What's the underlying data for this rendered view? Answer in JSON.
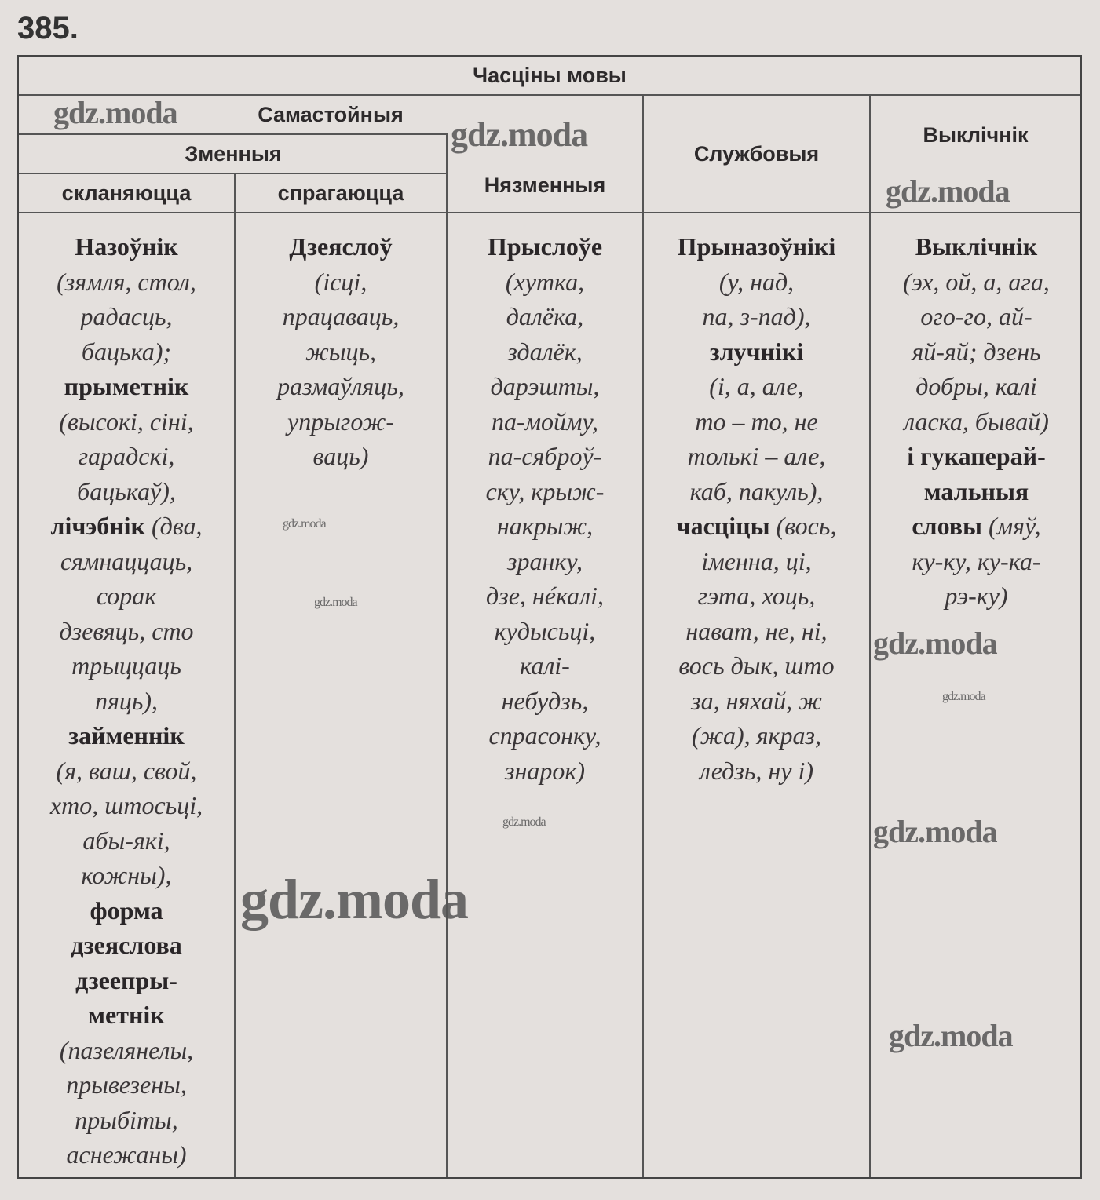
{
  "exercise_number": "385.",
  "table": {
    "title": "Часціны мовы",
    "headers": {
      "independent": "Самастойныя",
      "changeable": "Зменныя",
      "declinable": "скланяюцца",
      "conjugable": "спрагаюцца",
      "unchangeable": "Нязменныя",
      "auxiliary": "Службовыя",
      "interjection": "Выклічнік"
    },
    "columns": [
      [
        [
          [
            "Назоўнік",
            "b"
          ]
        ],
        [
          [
            "(зямля, стол,",
            "i"
          ]
        ],
        [
          [
            "радасць,",
            "i"
          ]
        ],
        [
          [
            "бацька);",
            "i"
          ]
        ],
        [
          [
            "прыметнік",
            "b"
          ]
        ],
        [
          [
            "(высокі, сіні,",
            "i"
          ]
        ],
        [
          [
            "гарадскі,",
            "i"
          ]
        ],
        [
          [
            "бацькаў),",
            "i"
          ]
        ],
        [
          [
            "лічэбнік ",
            "b"
          ],
          [
            "(два,",
            "i"
          ]
        ],
        [
          [
            "сямнаццаць,",
            "i"
          ]
        ],
        [
          [
            "сорак",
            "i"
          ]
        ],
        [
          [
            "дзевяць, сто",
            "i"
          ]
        ],
        [
          [
            "трыццаць",
            "i"
          ]
        ],
        [
          [
            "пяць),",
            "i"
          ]
        ],
        [
          [
            "займеннік",
            "b"
          ]
        ],
        [
          [
            "(я, ваш, свой,",
            "i"
          ]
        ],
        [
          [
            "хто, штосьці,",
            "i"
          ]
        ],
        [
          [
            "абы-які,",
            "i"
          ]
        ],
        [
          [
            "кожны),",
            "i"
          ]
        ],
        [
          [
            "форма",
            "b"
          ]
        ],
        [
          [
            "дзеяслова",
            "b"
          ]
        ],
        [
          [
            "дзеепры-",
            "b"
          ]
        ],
        [
          [
            "метнік",
            "b"
          ]
        ],
        [
          [
            "(пазелянелы,",
            "i"
          ]
        ],
        [
          [
            "прывезены,",
            "i"
          ]
        ],
        [
          [
            "прыбіты,",
            "i"
          ]
        ],
        [
          [
            "аснежаны)",
            "i"
          ]
        ]
      ],
      [
        [
          [
            "Дзеяслоў",
            "b"
          ]
        ],
        [
          [
            "(ісці,",
            "i"
          ]
        ],
        [
          [
            "працаваць,",
            "i"
          ]
        ],
        [
          [
            "жыць,",
            "i"
          ]
        ],
        [
          [
            "размаўляць,",
            "i"
          ]
        ],
        [
          [
            "упрыгож-",
            "i"
          ]
        ],
        [
          [
            "ваць)",
            "i"
          ]
        ]
      ],
      [
        [
          [
            "Прыслоўе",
            "b"
          ]
        ],
        [
          [
            "(хутка,",
            "i"
          ]
        ],
        [
          [
            "далёка,",
            "i"
          ]
        ],
        [
          [
            "здалёк,",
            "i"
          ]
        ],
        [
          [
            "дарэшты,",
            "i"
          ]
        ],
        [
          [
            "па-мойму,",
            "i"
          ]
        ],
        [
          [
            "па-сяброў-",
            "i"
          ]
        ],
        [
          [
            "ску, крыж-",
            "i"
          ]
        ],
        [
          [
            "накрыж,",
            "i"
          ]
        ],
        [
          [
            "зранку,",
            "i"
          ]
        ],
        [
          [
            "дзе, нéкалі,",
            "i"
          ]
        ],
        [
          [
            "кудысьці,",
            "i"
          ]
        ],
        [
          [
            "калі-",
            "i"
          ]
        ],
        [
          [
            "небудзь,",
            "i"
          ]
        ],
        [
          [
            "спрасонку,",
            "i"
          ]
        ],
        [
          [
            "знарок)",
            "i"
          ]
        ]
      ],
      [
        [
          [
            "Прыназоўнікі",
            "b"
          ]
        ],
        [
          [
            "(у, над,",
            "i"
          ]
        ],
        [
          [
            "па, з-пад),",
            "i"
          ]
        ],
        [
          [
            "злучнікі",
            "b"
          ]
        ],
        [
          [
            "(і, а, але,",
            "i"
          ]
        ],
        [
          [
            "то – то, не",
            "i"
          ]
        ],
        [
          [
            "толькі – але,",
            "i"
          ]
        ],
        [
          [
            "каб, пакуль),",
            "i"
          ]
        ],
        [
          [
            "часціцы ",
            "b"
          ],
          [
            "(вось,",
            "i"
          ]
        ],
        [
          [
            "іменна, ці,",
            "i"
          ]
        ],
        [
          [
            "гэта, хоць,",
            "i"
          ]
        ],
        [
          [
            "нават, не, ні,",
            "i"
          ]
        ],
        [
          [
            "вось дык, што",
            "i"
          ]
        ],
        [
          [
            "за, няхай, ж",
            "i"
          ]
        ],
        [
          [
            "(жа), якраз,",
            "i"
          ]
        ],
        [
          [
            "ледзь, ну і)",
            "i"
          ]
        ]
      ],
      [
        [
          [
            "Выклічнік",
            "b"
          ]
        ],
        [
          [
            "(эх, ой, а, ага,",
            "i"
          ]
        ],
        [
          [
            "ого-го, ай-",
            "i"
          ]
        ],
        [
          [
            "яй-яй; дзень",
            "i"
          ]
        ],
        [
          [
            "добры, калі",
            "i"
          ]
        ],
        [
          [
            "ласка, бывай)",
            "i"
          ]
        ],
        [
          [
            "і гукаперай-",
            "b"
          ]
        ],
        [
          [
            "мальныя",
            "b"
          ]
        ],
        [
          [
            "словы ",
            "b"
          ],
          [
            "(мяў,",
            "i"
          ]
        ],
        [
          [
            "ку-ку, ку-ка-",
            "i"
          ]
        ],
        [
          [
            "рэ-ку)",
            "i"
          ]
        ]
      ]
    ]
  },
  "watermark": "gdz.moda"
}
